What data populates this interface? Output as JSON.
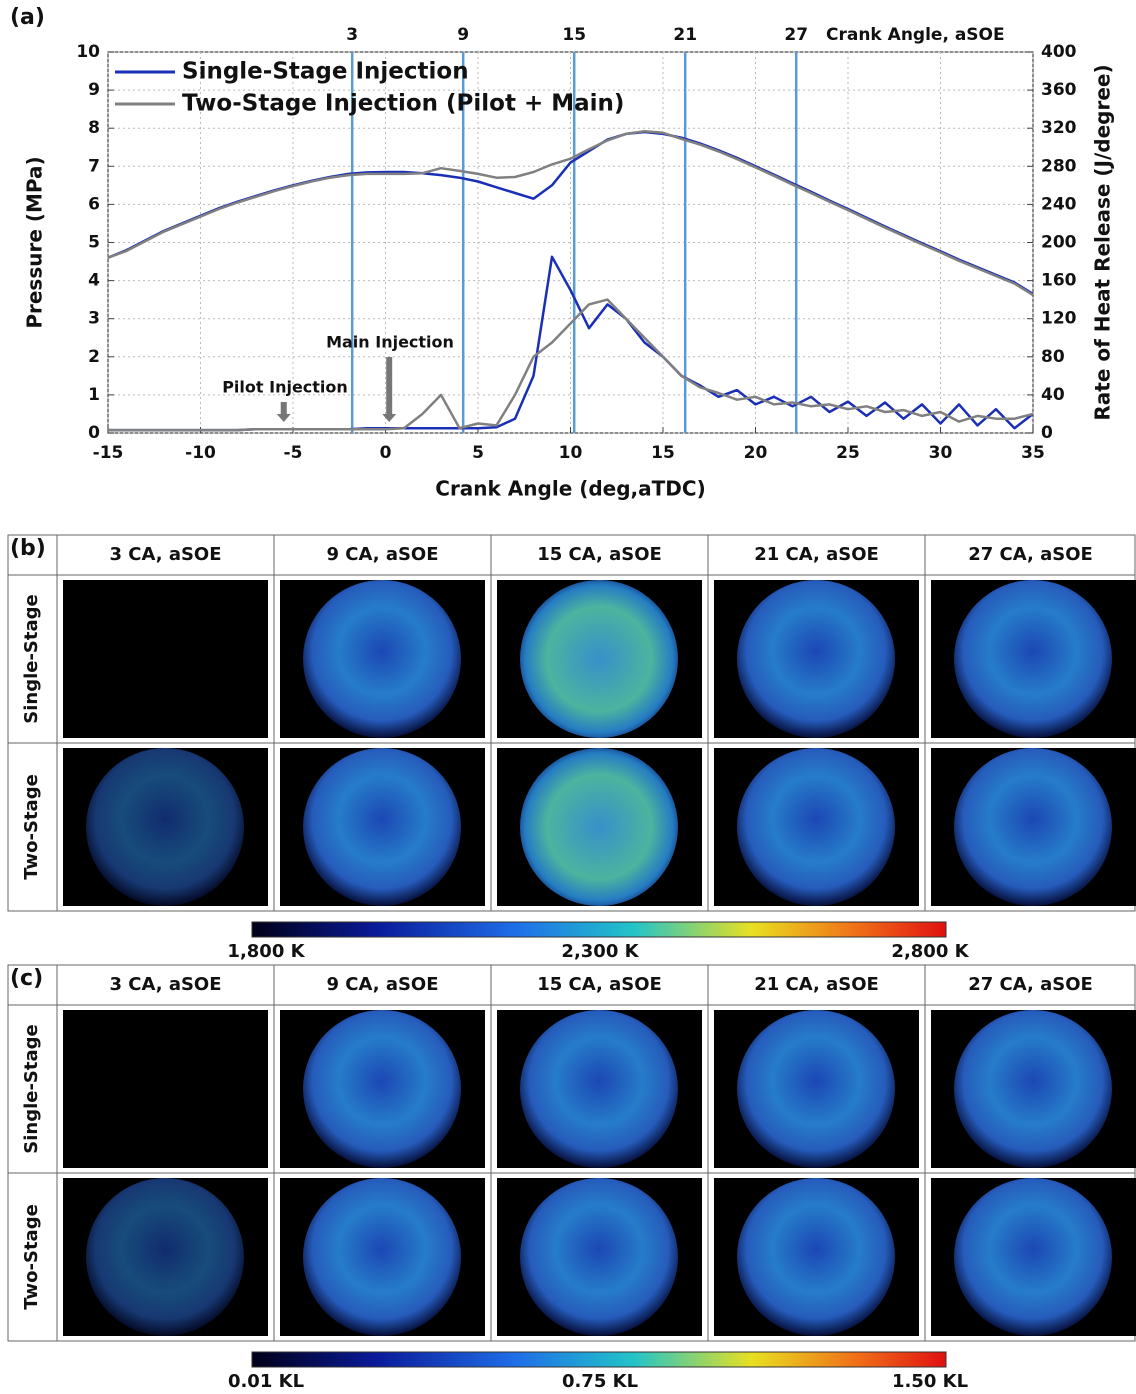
{
  "chart_data": {
    "type": "line",
    "panel_label": "(a)",
    "xlabel": "Crank Angle (deg,aTDC)",
    "ylabel": "Pressure (MPa)",
    "y2label": "Rate of Heat Release (J/degree)",
    "top_xlabel": "Crank Angle, aSOE",
    "top_xticks": [
      {
        "value": -1.8,
        "label": "3"
      },
      {
        "value": 4.2,
        "label": "9"
      },
      {
        "value": 10.2,
        "label": "15"
      },
      {
        "value": 16.2,
        "label": "21"
      },
      {
        "value": 22.2,
        "label": "27"
      }
    ],
    "marker_color": "#5b9bd5",
    "annotations": [
      "Pilot Injection",
      "Main Injection"
    ],
    "xlim": [
      -15,
      35
    ],
    "xticks": [
      -15,
      -10,
      -5,
      0,
      5,
      10,
      15,
      20,
      25,
      30,
      35
    ],
    "ylim": [
      0,
      10
    ],
    "yticks": [
      0,
      1,
      2,
      3,
      4,
      5,
      6,
      7,
      8,
      9,
      10
    ],
    "y2lim": [
      0,
      400
    ],
    "y2ticks": [
      0,
      40,
      80,
      120,
      160,
      200,
      240,
      280,
      320,
      360,
      400
    ],
    "grid": true,
    "legend": "upper-left",
    "x": [
      -15,
      -14,
      -13,
      -12,
      -11,
      -10,
      -9,
      -8,
      -7,
      -6,
      -5,
      -4,
      -3,
      -2,
      -1,
      0,
      1,
      2,
      3,
      4,
      5,
      6,
      7,
      8,
      9,
      10,
      11,
      12,
      13,
      14,
      15,
      16,
      17,
      18,
      19,
      20,
      21,
      22,
      23,
      24,
      25,
      26,
      27,
      28,
      29,
      30,
      31,
      32,
      33,
      34,
      35
    ],
    "series": [
      {
        "name": "Single-Stage Injection",
        "color": "#1a2fb5",
        "values": [
          4.6,
          4.8,
          5.05,
          5.3,
          5.5,
          5.7,
          5.9,
          6.07,
          6.22,
          6.37,
          6.5,
          6.62,
          6.72,
          6.8,
          6.84,
          6.85,
          6.85,
          6.82,
          6.77,
          6.7,
          6.6,
          6.45,
          6.3,
          6.15,
          6.5,
          7.1,
          7.4,
          7.7,
          7.85,
          7.9,
          7.85,
          7.75,
          7.6,
          7.42,
          7.22,
          7.0,
          6.78,
          6.55,
          6.33,
          6.1,
          5.88,
          5.65,
          5.42,
          5.2,
          4.98,
          4.77,
          4.55,
          4.35,
          4.15,
          3.95,
          3.65
        ]
      },
      {
        "name": "Two-Stage Injection (Pilot + Main)",
        "color": "#808080",
        "values": [
          4.6,
          4.78,
          5.03,
          5.28,
          5.48,
          5.68,
          5.88,
          6.05,
          6.2,
          6.35,
          6.48,
          6.6,
          6.7,
          6.77,
          6.8,
          6.8,
          6.8,
          6.82,
          6.95,
          6.88,
          6.8,
          6.7,
          6.72,
          6.85,
          7.05,
          7.2,
          7.45,
          7.68,
          7.85,
          7.92,
          7.88,
          7.72,
          7.57,
          7.39,
          7.19,
          6.97,
          6.75,
          6.52,
          6.3,
          6.07,
          5.85,
          5.62,
          5.39,
          5.17,
          4.95,
          4.74,
          4.52,
          4.32,
          4.12,
          3.92,
          3.62
        ]
      },
      {
        "color": "#1a2fb5",
        "axis": "y2",
        "values": [
          3,
          3,
          3,
          3,
          3,
          3,
          3,
          3,
          4,
          4,
          4,
          4,
          4,
          4,
          5,
          5,
          5,
          5,
          5,
          5,
          5,
          6,
          15,
          60,
          185,
          150,
          110,
          135,
          120,
          95,
          80,
          60,
          50,
          38,
          45,
          30,
          38,
          28,
          38,
          22,
          33,
          18,
          32,
          15,
          30,
          10,
          30,
          8,
          25,
          5,
          20
        ]
      },
      {
        "color": "#808080",
        "axis": "y2",
        "values": [
          3,
          3,
          3,
          3,
          3,
          3,
          3,
          3,
          4,
          4,
          4,
          4,
          4,
          4,
          4,
          4,
          5,
          20,
          40,
          5,
          10,
          8,
          40,
          80,
          95,
          115,
          135,
          140,
          120,
          100,
          80,
          60,
          48,
          42,
          35,
          38,
          30,
          32,
          28,
          30,
          25,
          28,
          22,
          24,
          18,
          22,
          12,
          18,
          15,
          15,
          20
        ]
      }
    ]
  },
  "panels": [
    {
      "label": "(b)",
      "columns": [
        "3 CA, aSOE",
        "9 CA, aSOE",
        "15 CA, aSOE",
        "21 CA, aSOE",
        "27 CA, aSOE"
      ],
      "rows": [
        "Single-Stage",
        "Two-Stage"
      ],
      "colorbar_labels": [
        "1,800 K",
        "2,300 K",
        "2,800 K"
      ]
    },
    {
      "label": "(c)",
      "columns": [
        "3 CA, aSOE",
        "9 CA, aSOE",
        "15 CA, aSOE",
        "21 CA, aSOE",
        "27 CA, aSOE"
      ],
      "rows": [
        "Single-Stage",
        "Two-Stage"
      ],
      "colorbar_labels": [
        "0.01 KL",
        "0.75 KL",
        "1.50 KL"
      ]
    }
  ]
}
